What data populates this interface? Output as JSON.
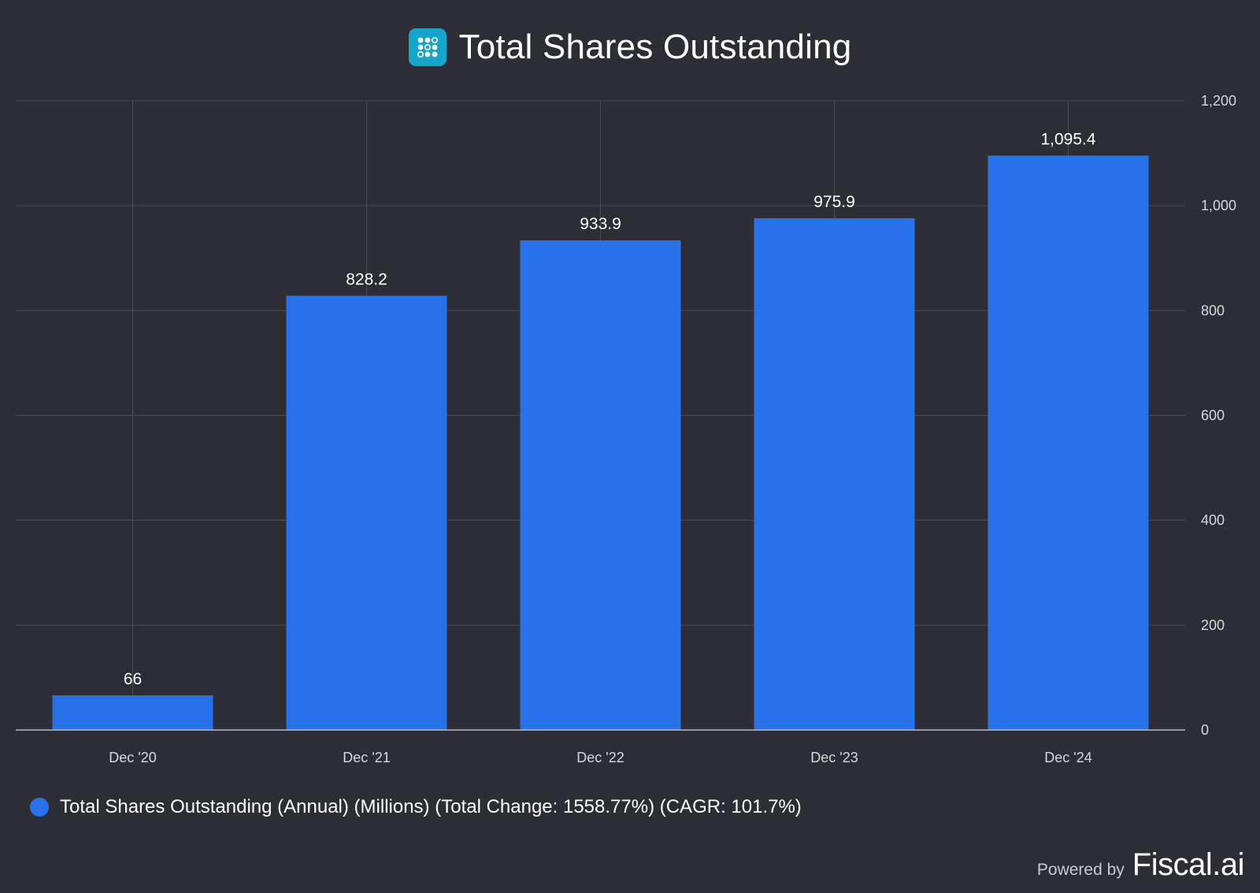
{
  "header": {
    "title": "Total Shares Outstanding",
    "logo_icon": "dots-grid-icon"
  },
  "colors": {
    "background": "#2c2d35",
    "bar": "#2772ea",
    "grid": "#4a4b53",
    "logo": "#14a6c9"
  },
  "chart_data": {
    "type": "bar",
    "title": "Total Shares Outstanding",
    "categories": [
      "Dec '20",
      "Dec '21",
      "Dec '22",
      "Dec '23",
      "Dec '24"
    ],
    "series": [
      {
        "name": "Total Shares Outstanding (Annual) (Millions) (Total Change: 1558.77%) (CAGR: 101.7%)",
        "values": [
          66,
          828.2,
          933.9,
          975.9,
          1095.4
        ],
        "labels": [
          "66",
          "828.2",
          "933.9",
          "975.9",
          "1,095.4"
        ]
      }
    ],
    "ylim": [
      0,
      1200
    ],
    "yticks": [
      0,
      200,
      400,
      600,
      800,
      1000,
      1200
    ],
    "ytick_labels": [
      "0",
      "200",
      "400",
      "600",
      "800",
      "1,000",
      "1,200"
    ],
    "y_axis_side": "right",
    "grid": true,
    "legend_position": "bottom-left"
  },
  "legend": {
    "label": "Total Shares Outstanding (Annual) (Millions) (Total Change: 1558.77%) (CAGR: 101.7%)"
  },
  "footer": {
    "powered_by": "Powered by",
    "brand": "Fiscal.ai"
  }
}
